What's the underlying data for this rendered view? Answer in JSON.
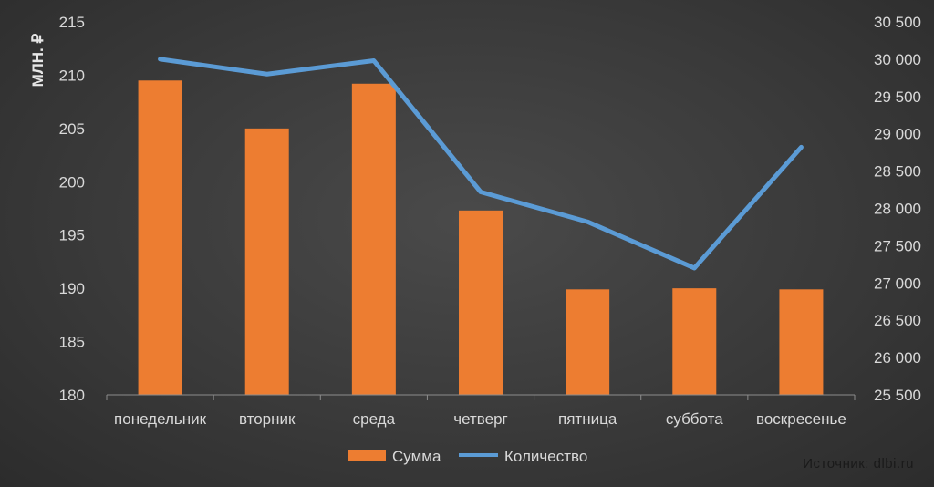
{
  "chart_data": {
    "type": "bar",
    "categories": [
      "понедельник",
      "вторник",
      "среда",
      "четверг",
      "пятница",
      "суббота",
      "воскресенье"
    ],
    "series": [
      {
        "name": "Сумма",
        "type": "bar",
        "axis": "left",
        "color": "#ed7d31",
        "values": [
          209.5,
          205.0,
          209.2,
          197.3,
          189.9,
          190.0,
          189.9
        ]
      },
      {
        "name": "Количество",
        "type": "line",
        "axis": "right",
        "color": "#5b9bd5",
        "values": [
          30000,
          29800,
          29980,
          28220,
          27820,
          27200,
          28820
        ]
      }
    ],
    "ylabel": "МЛН. ₽",
    "ylim": [
      180,
      215
    ],
    "yticks": [
      "180",
      "185",
      "190",
      "195",
      "200",
      "205",
      "210",
      "215"
    ],
    "y2lim": [
      25500,
      30500
    ],
    "y2ticks": [
      "25 500",
      "26 000",
      "26 500",
      "27 000",
      "27 500",
      "28 000",
      "28 500",
      "29 000",
      "29 500",
      "30 000",
      "30 500"
    ],
    "legend": "bottom",
    "grid": false
  },
  "source": "Источник: dlbi.ru"
}
